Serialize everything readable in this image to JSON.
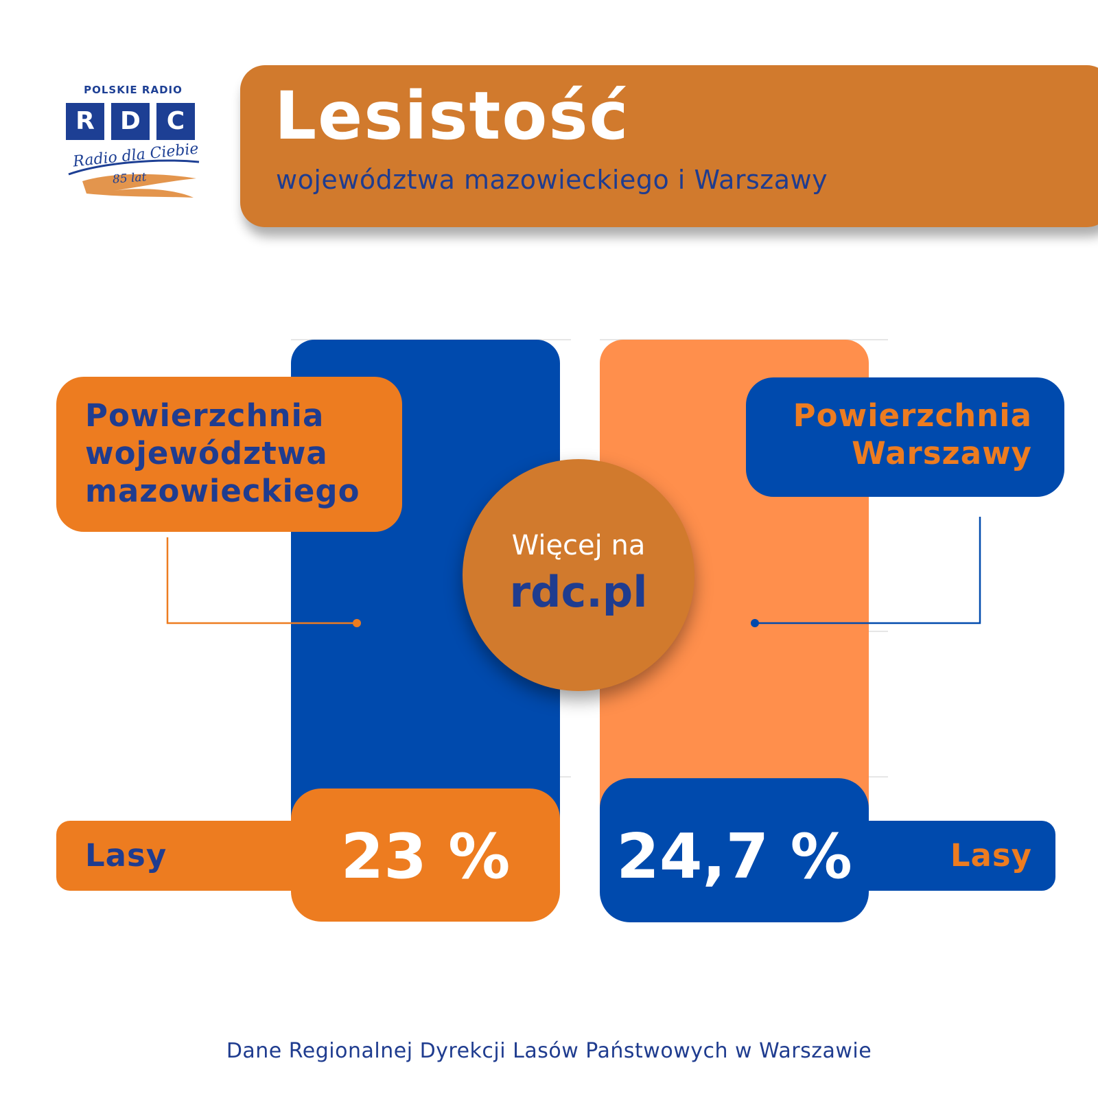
{
  "logo": {
    "top_text": "POLSKIE RADIO",
    "letters": [
      "R",
      "D",
      "C"
    ],
    "script_text": "Radio dla Ciebie",
    "years_text": "85 lat"
  },
  "header": {
    "title": "Lesistość",
    "subtitle": "województwa mazowieckiego i Warszawy"
  },
  "chart_data": {
    "type": "bar",
    "categories": [
      "Powierzchnia województwa mazowieckiego",
      "Powierzchnia Warszawy"
    ],
    "series": [
      {
        "name": "Lasy",
        "values": [
          23,
          24.7
        ]
      }
    ],
    "value_labels": [
      "23 %",
      "24,7 %"
    ],
    "legend_labels": [
      "Lasy",
      "Lasy"
    ],
    "colors": [
      "#004aad",
      "#ff8f4c"
    ],
    "accent_colors": [
      "#ed7c20",
      "#004aad"
    ],
    "grid": true
  },
  "labels": {
    "left_category": [
      "Powierzchnia",
      "województwa",
      "mazowieckiego"
    ],
    "right_category": [
      "Powierzchnia",
      "Warszawy"
    ]
  },
  "promo": {
    "line1": "Więcej na",
    "line2": "rdc.pl"
  },
  "footer": {
    "source": "Dane Regionalnej Dyrekcji Lasów Państwowych w Warszawie"
  },
  "colors": {
    "brand_orange": "#d17a2d",
    "accent_orange": "#ed7c20",
    "light_orange": "#ff8f4c",
    "brand_blue": "#004aad",
    "text_blue": "#1f3c8f"
  }
}
